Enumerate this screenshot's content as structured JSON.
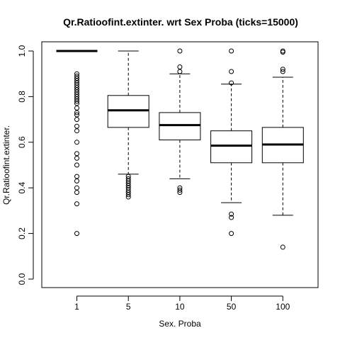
{
  "chart_data": {
    "type": "boxplot",
    "title": "Qr.Ratioofint.extinter. wrt Sex Proba (ticks=15000)",
    "xlabel": "Sex. Proba",
    "ylabel": "Qr.Ratioofint.extinter.",
    "categories": [
      "1",
      "5",
      "10",
      "50",
      "100"
    ],
    "ylim": [
      0,
      1
    ],
    "yticks": [
      "0.0",
      "0.2",
      "0.4",
      "0.6",
      "0.8",
      "1.0"
    ],
    "grid": false,
    "boxes": [
      {
        "category": "1",
        "whisker_low": 1.0,
        "q1": 1.0,
        "median": 1.0,
        "q3": 1.0,
        "whisker_high": 1.0,
        "outliers": [
          0.9,
          0.89,
          0.88,
          0.87,
          0.86,
          0.85,
          0.84,
          0.83,
          0.82,
          0.81,
          0.8,
          0.79,
          0.78,
          0.77,
          0.75,
          0.73,
          0.72,
          0.7,
          0.67,
          0.65,
          0.6,
          0.55,
          0.53,
          0.5,
          0.45,
          0.43,
          0.4,
          0.38,
          0.33,
          0.2
        ]
      },
      {
        "category": "5",
        "whisker_low": 0.46,
        "q1": 0.665,
        "median": 0.74,
        "q3": 0.805,
        "whisker_high": 1.0,
        "outliers": [
          0.45,
          0.44,
          0.43,
          0.42,
          0.41,
          0.4,
          0.39,
          0.38,
          0.37,
          0.36
        ]
      },
      {
        "category": "10",
        "whisker_low": 0.44,
        "q1": 0.61,
        "median": 0.675,
        "q3": 0.73,
        "whisker_high": 0.9,
        "outliers": [
          1.0,
          0.93,
          0.91,
          0.4,
          0.39,
          0.38
        ]
      },
      {
        "category": "50",
        "whisker_low": 0.335,
        "q1": 0.51,
        "median": 0.585,
        "q3": 0.65,
        "whisker_high": 0.855,
        "outliers": [
          1.0,
          0.91,
          0.86,
          0.285,
          0.27,
          0.2
        ]
      },
      {
        "category": "100",
        "whisker_low": 0.28,
        "q1": 0.51,
        "median": 0.59,
        "q3": 0.665,
        "whisker_high": 0.885,
        "outliers": [
          1.0,
          0.995,
          0.92,
          0.91,
          0.14
        ]
      }
    ]
  }
}
